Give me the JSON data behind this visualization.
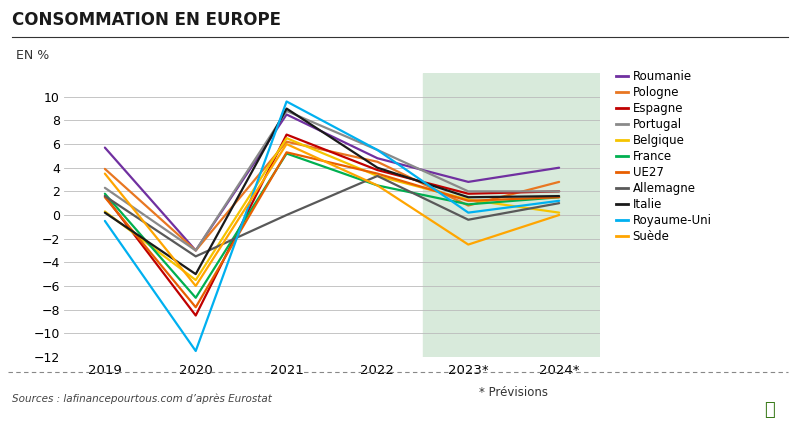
{
  "title": "CONSOMMATION EN EUROPE",
  "ylabel": "EN %",
  "source": "Sources : lafinancepourtous.com d’après Eurostat",
  "previsions_note": "* Prévisions",
  "xtick_labels": [
    "2019",
    "2020",
    "2021",
    "2022",
    "2023*",
    "2024*"
  ],
  "ylim": [
    -12,
    12
  ],
  "yticks": [
    -12,
    -10,
    -8,
    -6,
    -4,
    -2,
    0,
    2,
    4,
    6,
    8,
    10
  ],
  "previsions_bg": "#d8eadb",
  "background_color": "#ffffff",
  "grid_color": "#bbbbbb",
  "series": [
    {
      "name": "Roumanie",
      "color": "#7030a0",
      "data": [
        5.7,
        -3.0,
        8.5,
        4.8,
        2.8,
        4.0
      ]
    },
    {
      "name": "Pologne",
      "color": "#e87722",
      "data": [
        3.9,
        -3.0,
        6.2,
        4.5,
        0.8,
        2.8
      ]
    },
    {
      "name": "Espagne",
      "color": "#c00000",
      "data": [
        1.6,
        -8.5,
        6.8,
        3.8,
        1.8,
        2.0
      ]
    },
    {
      "name": "Portugal",
      "color": "#8a8a8a",
      "data": [
        2.3,
        -3.0,
        8.8,
        5.5,
        2.0,
        2.0
      ]
    },
    {
      "name": "Belgique",
      "color": "#f5c400",
      "data": [
        0.3,
        -5.5,
        6.5,
        3.3,
        1.3,
        0.2
      ]
    },
    {
      "name": "France",
      "color": "#00b050",
      "data": [
        1.8,
        -7.0,
        5.2,
        2.5,
        0.9,
        1.5
      ]
    },
    {
      "name": "UE27",
      "color": "#e85f00",
      "data": [
        1.5,
        -7.8,
        5.3,
        3.5,
        1.2,
        1.5
      ]
    },
    {
      "name": "Allemagne",
      "color": "#595959",
      "data": [
        1.6,
        -3.5,
        0.0,
        3.3,
        -0.4,
        1.0
      ]
    },
    {
      "name": "Italie",
      "color": "#1a1a1a",
      "data": [
        0.2,
        -5.0,
        9.0,
        4.0,
        1.5,
        1.6
      ]
    },
    {
      "name": "Royaume-Uni",
      "color": "#00b0f0",
      "data": [
        -0.5,
        -11.5,
        9.6,
        5.5,
        0.2,
        1.2
      ]
    },
    {
      "name": "Suède",
      "color": "#ffa500",
      "data": [
        3.5,
        -6.0,
        6.0,
        2.5,
        -2.5,
        0.0
      ]
    }
  ]
}
